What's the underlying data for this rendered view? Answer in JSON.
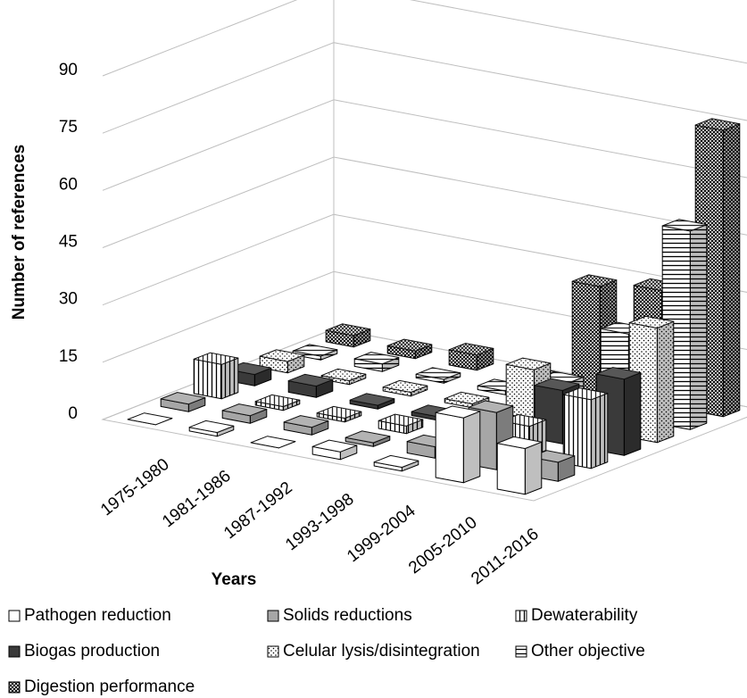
{
  "chart_data": {
    "type": "bar3d",
    "y_label": "Number of references",
    "x_label": "Years",
    "categories": [
      "1975-1980",
      "1981-1986",
      "1987-1992",
      "1993-1998",
      "1999-2004",
      "2005-2010",
      "2011-2016"
    ],
    "series": [
      {
        "name": "Pathogen reduction",
        "color": "#ffffff",
        "pattern": "none",
        "values": [
          0,
          1,
          0,
          2,
          1,
          17,
          12
        ]
      },
      {
        "name": "Solids reductions",
        "color": "#a6a6a6",
        "pattern": "none",
        "values": [
          2,
          2,
          2,
          1,
          3,
          15,
          5
        ]
      },
      {
        "name": "Dewaterability",
        "color": "#ffffff",
        "pattern": "vertical",
        "values": [
          9,
          1,
          1,
          2,
          2,
          8,
          18
        ]
      },
      {
        "name": "Biogas production",
        "color": "#3a3a3a",
        "pattern": "none",
        "values": [
          3,
          3,
          1,
          1,
          2,
          14,
          20
        ]
      },
      {
        "name": "Celular lysis/disintegration",
        "color": "#ffffff",
        "pattern": "dots",
        "values": [
          3,
          1,
          1,
          1,
          13,
          7,
          30
        ]
      },
      {
        "name": "Other objective",
        "color": "#ffffff",
        "pattern": "horizontal",
        "values": [
          1,
          2,
          1,
          1,
          6,
          22,
          52
        ]
      },
      {
        "name": "Digestion performance",
        "color": "#ffffff",
        "pattern": "cross",
        "values": [
          3,
          2,
          4,
          1,
          28,
          30,
          75
        ]
      }
    ],
    "ylim": [
      0,
      90
    ],
    "yticks": [
      0,
      15,
      30,
      45,
      60,
      75,
      90
    ],
    "grid": true
  }
}
